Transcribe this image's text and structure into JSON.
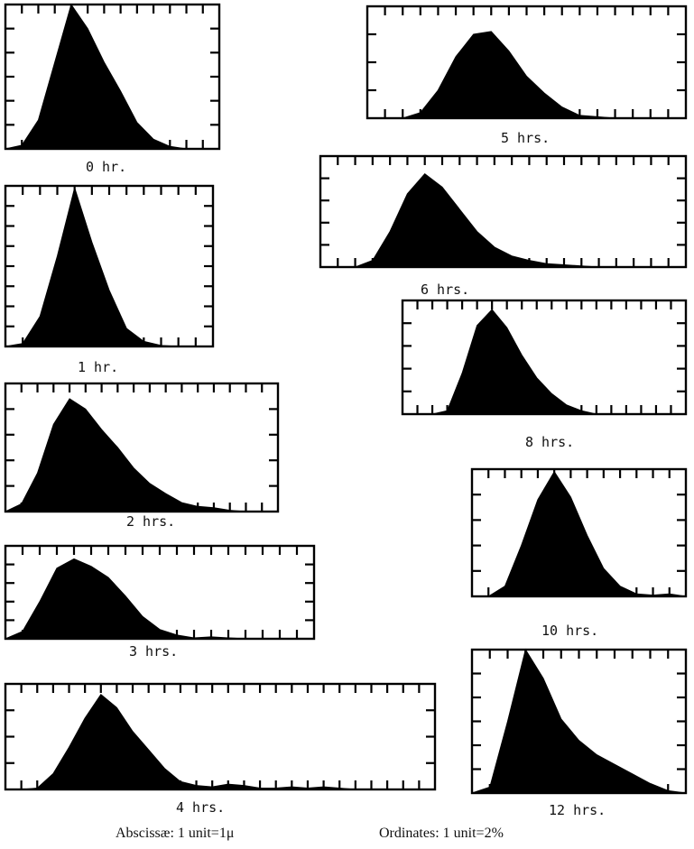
{
  "chart_data": [
    {
      "type": "area",
      "label": "0 hr.",
      "x_units": 13,
      "y_units": 6,
      "values": [
        0,
        0.15,
        1.2,
        3.6,
        6.1,
        5.0,
        3.6,
        2.4,
        1.1,
        0.4,
        0.1,
        0,
        0,
        0
      ]
    },
    {
      "type": "area",
      "label": "1 hr.",
      "x_units": 12,
      "y_units": 8,
      "values": [
        0,
        0.15,
        1.5,
        4.5,
        7.9,
        5.2,
        2.8,
        0.9,
        0.25,
        0.05,
        0,
        0,
        0
      ]
    },
    {
      "type": "area",
      "label": "2 hrs.",
      "x_units": 17,
      "y_units": 5,
      "values": [
        0,
        0.3,
        1.5,
        3.4,
        4.4,
        4.0,
        3.2,
        2.5,
        1.7,
        1.1,
        0.7,
        0.35,
        0.2,
        0.15,
        0.05,
        0,
        0,
        0
      ]
    },
    {
      "type": "area",
      "label": "3 hrs.",
      "x_units": 18,
      "y_units": 5,
      "values": [
        0,
        0.4,
        2.0,
        3.8,
        4.3,
        3.9,
        3.3,
        2.3,
        1.2,
        0.5,
        0.2,
        0.05,
        0.1,
        0.05,
        0,
        0,
        0,
        0,
        0
      ]
    },
    {
      "type": "area",
      "label": "4 hrs.",
      "x_units": 27,
      "y_units": 4,
      "values": [
        0,
        0,
        0.05,
        0.6,
        1.6,
        2.7,
        3.6,
        3.1,
        2.2,
        1.5,
        0.8,
        0.3,
        0.15,
        0.1,
        0.2,
        0.15,
        0.05,
        0.05,
        0.1,
        0.05,
        0.1,
        0.05,
        0,
        0,
        0,
        0,
        0,
        0
      ]
    },
    {
      "type": "area",
      "label": "5 hrs.",
      "x_units": 18,
      "y_units": 4,
      "values": [
        0,
        0,
        0,
        0.2,
        1.0,
        2.2,
        3.0,
        3.1,
        2.4,
        1.5,
        0.9,
        0.4,
        0.1,
        0.05,
        0,
        0,
        0,
        0,
        0
      ]
    },
    {
      "type": "area",
      "label": "6 hrs.",
      "x_units": 21,
      "y_units": 5,
      "values": [
        0,
        0,
        0,
        0.3,
        1.6,
        3.3,
        4.2,
        3.6,
        2.6,
        1.6,
        0.9,
        0.5,
        0.3,
        0.15,
        0.1,
        0.05,
        0,
        0,
        0,
        0,
        0,
        0
      ]
    },
    {
      "type": "area",
      "label": "8 hrs.",
      "x_units": 19,
      "y_units": 5,
      "values": [
        0,
        0,
        0,
        0.15,
        1.8,
        3.9,
        4.6,
        3.8,
        2.6,
        1.6,
        0.9,
        0.4,
        0.15,
        0,
        0,
        0,
        0,
        0,
        0,
        0
      ]
    },
    {
      "type": "area",
      "label": "10 hrs.",
      "x_units": 13,
      "y_units": 5,
      "values": [
        0,
        0,
        0.4,
        2.0,
        3.8,
        4.9,
        3.9,
        2.4,
        1.1,
        0.4,
        0.1,
        0.05,
        0.1,
        0
      ]
    },
    {
      "type": "area",
      "label": "12 hrs.",
      "x_units": 12,
      "y_units": 6,
      "values": [
        0,
        0.25,
        3.0,
        6.1,
        4.8,
        3.1,
        2.2,
        1.6,
        1.2,
        0.8,
        0.4,
        0.1,
        0
      ]
    }
  ],
  "footer": {
    "abscissae": "Abscissæ:  1 unit=1μ",
    "ordinates": "Ordinates:  1 unit=2%"
  }
}
